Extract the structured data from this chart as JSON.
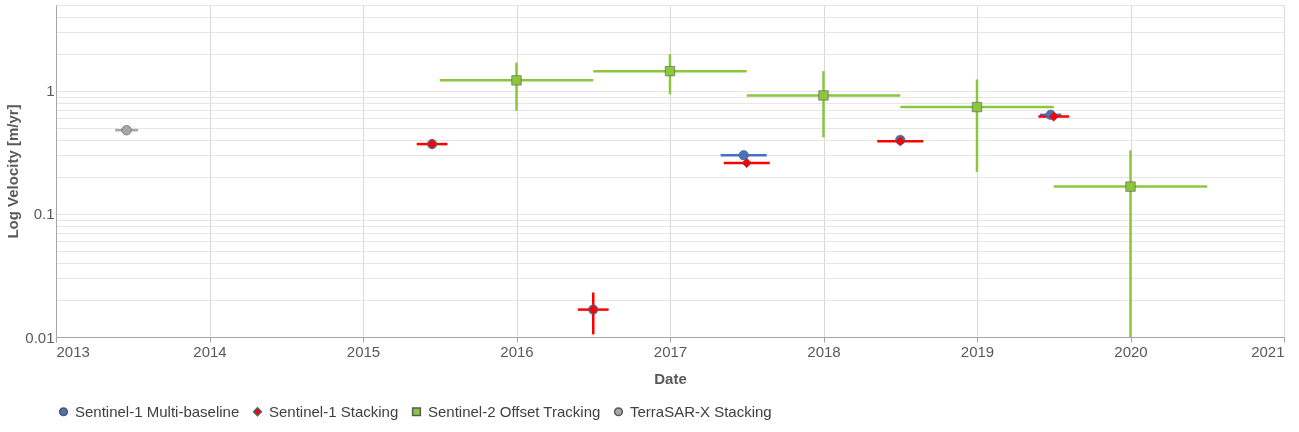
{
  "chart_data": {
    "type": "scatter",
    "xlabel": "Date",
    "ylabel": "Log Velocity [m/yr]",
    "xlim": [
      2013,
      2021
    ],
    "xticks": [
      2013,
      2014,
      2015,
      2016,
      2017,
      2018,
      2019,
      2020,
      2021
    ],
    "ylim": [
      0.01,
      5
    ],
    "log": "y",
    "yticks": [
      0.01,
      {
        "value": 0.02,
        "label": null
      },
      {
        "value": 0.03,
        "label": null
      },
      {
        "value": 0.04,
        "label": null
      },
      {
        "value": 0.05,
        "label": null
      },
      {
        "value": 0.06,
        "label": null
      },
      {
        "value": 0.07,
        "label": null
      },
      {
        "value": 0.08,
        "label": null
      },
      {
        "value": 0.09,
        "label": null
      },
      0.1,
      {
        "value": 0.2,
        "label": null
      },
      {
        "value": 0.3,
        "label": null
      },
      {
        "value": 0.4,
        "label": null
      },
      {
        "value": 0.5,
        "label": null
      },
      {
        "value": 0.6,
        "label": null
      },
      {
        "value": 0.7,
        "label": null
      },
      {
        "value": 0.8,
        "label": null
      },
      {
        "value": 0.9,
        "label": null
      },
      1,
      {
        "value": 2,
        "label": null
      },
      {
        "value": 3,
        "label": null
      },
      {
        "value": 4,
        "label": null
      },
      {
        "value": 5,
        "label": null
      }
    ],
    "grid": true,
    "legend": "bottom",
    "series": [
      {
        "name": "Sentinel-1 Multi-baseline",
        "color": "#4472c4",
        "marker": "circle",
        "x": [
          2015.45,
          2016.5,
          2017.48,
          2018.5,
          2019.48
        ],
        "values": [
          0.37,
          0.0167,
          0.3,
          0.4,
          0.64
        ],
        "xerrors": [
          null,
          null,
          0.15,
          null,
          0.07
        ]
      },
      {
        "name": "Sentinel-1 Stacking",
        "color": "#ff0000",
        "marker": "diamond",
        "x": [
          2015.45,
          2016.5,
          2017.5,
          2018.5,
          2019.5
        ],
        "values": [
          0.37,
          0.0167,
          0.26,
          0.39,
          0.62
        ],
        "xerrors": [
          0.1,
          0.1,
          0.15,
          0.15,
          0.1
        ],
        "errors": [
          null,
          [
            0.0105,
            0.023
          ],
          null,
          null,
          null
        ]
      },
      {
        "name": "Sentinel-2 Offset Tracking",
        "color": "#8cc63f",
        "marker": "square",
        "x": [
          2016.0,
          2017.0,
          2018.0,
          2019.0,
          2020.0
        ],
        "values": [
          1.22,
          1.45,
          0.92,
          0.74,
          0.167
        ],
        "xerrors": [
          [
            2015.5,
            2016.5
          ],
          [
            2016.5,
            2017.5
          ],
          [
            2017.5,
            2018.5
          ],
          [
            2018.5,
            2019.5
          ],
          [
            2019.5,
            2020.5
          ]
        ],
        "errors": [
          [
            0.69,
            1.7
          ],
          [
            0.94,
            1.99
          ],
          [
            0.42,
            1.45
          ],
          [
            0.22,
            1.24
          ],
          [
            0.01,
            0.33
          ]
        ]
      },
      {
        "name": "TerraSAR-X Stacking",
        "color": "#a6a6a6",
        "marker": "circle",
        "x": [
          2013.46
        ],
        "values": [
          0.48
        ],
        "xerrors": [
          0.075
        ]
      }
    ]
  }
}
